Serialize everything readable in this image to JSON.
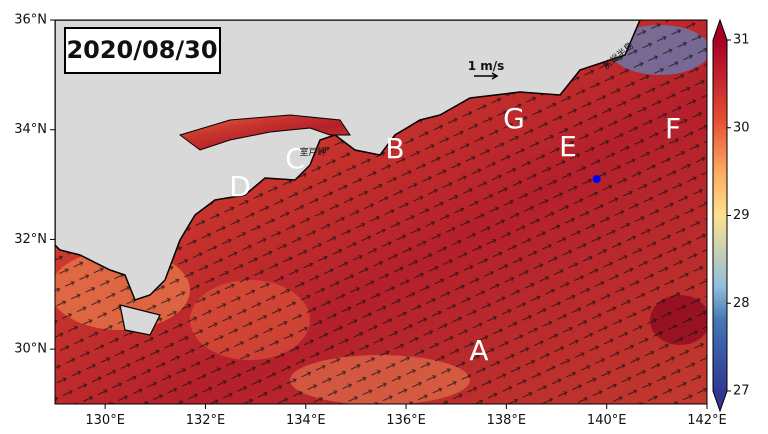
{
  "title": "2020/08/30",
  "xlim": [
    129,
    142
  ],
  "ylim": [
    29,
    36
  ],
  "xticks": [
    {
      "value": 130,
      "label": "130°E"
    },
    {
      "value": 132,
      "label": "132°E"
    },
    {
      "value": 134,
      "label": "134°E"
    },
    {
      "value": 136,
      "label": "136°E"
    },
    {
      "value": 138,
      "label": "138°E"
    },
    {
      "value": 140,
      "label": "140°E"
    },
    {
      "value": 142,
      "label": "142°E"
    }
  ],
  "yticks": [
    {
      "value": 30,
      "label": "30°N"
    },
    {
      "value": 32,
      "label": "32°N"
    },
    {
      "value": 34,
      "label": "34°N"
    },
    {
      "value": 36,
      "label": "36°N"
    }
  ],
  "colorbar": {
    "lim": [
      27,
      31
    ],
    "ticks": [
      27,
      28,
      29,
      30,
      31
    ]
  },
  "scale_label": "1 m/s",
  "region_labels": [
    "A",
    "B",
    "C",
    "D",
    "E",
    "F",
    "G"
  ],
  "place_labels": [
    "室戸岬",
    "房総半島"
  ],
  "station": {
    "lon": 139.8,
    "lat": 33.1,
    "color": "#0000ff"
  }
}
